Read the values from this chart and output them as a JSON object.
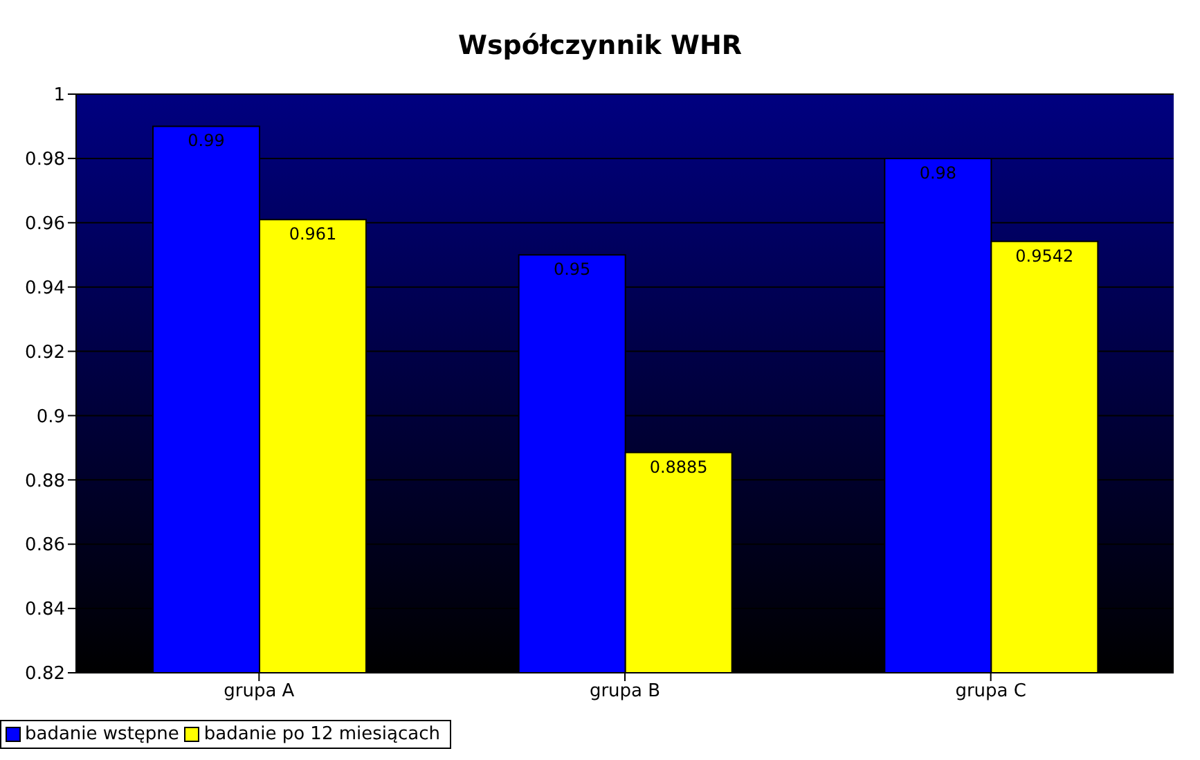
{
  "chart_data": {
    "type": "bar",
    "title": "Współczynnik WHR",
    "categories": [
      "grupa A",
      "grupa B",
      "grupa C"
    ],
    "series": [
      {
        "name": "badanie wstępne",
        "color": "#0000ff",
        "values": [
          0.99,
          0.95,
          0.98
        ]
      },
      {
        "name": "badanie po 12 miesiącach",
        "color": "#ffff00",
        "values": [
          0.961,
          0.8885,
          0.9542
        ]
      }
    ],
    "ylim": [
      0.82,
      1
    ],
    "yticks": [
      0.82,
      0.84,
      0.86,
      0.88,
      0.9,
      0.92,
      0.94,
      0.96,
      0.98,
      1
    ],
    "grid": "y",
    "legend": "bottom",
    "data_labels": true
  }
}
